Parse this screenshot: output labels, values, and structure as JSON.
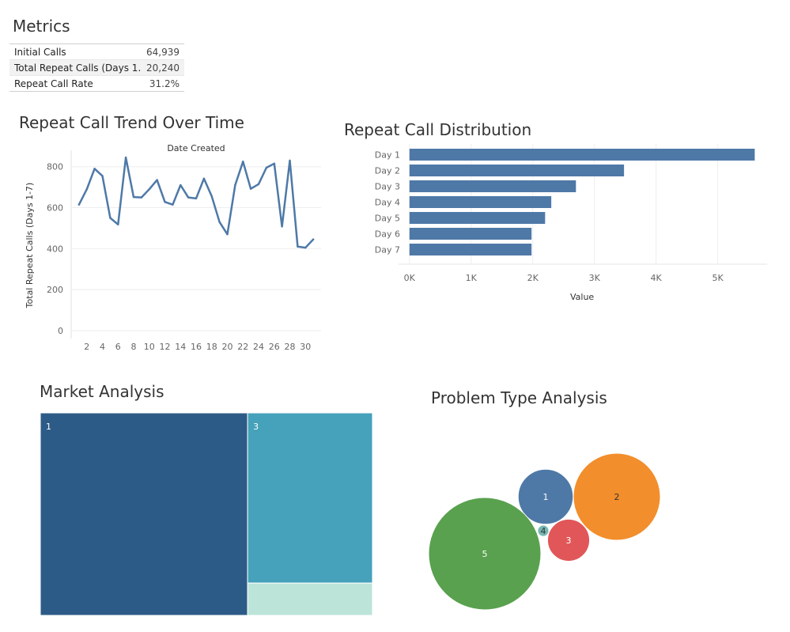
{
  "metrics": {
    "title": "Metrics",
    "rows": [
      {
        "label": "Initial Calls",
        "value": "64,939"
      },
      {
        "label": "Total Repeat Calls (Days 1..",
        "value": "20,240"
      },
      {
        "label": "Repeat Call Rate",
        "value": "31.2%"
      }
    ]
  },
  "chart_data": [
    {
      "type": "line",
      "title": "Repeat Call Trend Over Time",
      "xlabel": "Date Created",
      "ylabel": "Total Repeat Calls (Days 1-7)",
      "x": [
        1,
        2,
        3,
        4,
        5,
        6,
        7,
        8,
        9,
        10,
        11,
        12,
        13,
        14,
        15,
        16,
        17,
        18,
        19,
        20,
        21,
        22,
        23,
        24,
        25,
        26,
        27,
        28,
        29,
        30,
        31
      ],
      "values": [
        615,
        690,
        790,
        755,
        550,
        518,
        845,
        652,
        650,
        690,
        735,
        628,
        615,
        710,
        650,
        645,
        742,
        655,
        530,
        470,
        710,
        825,
        692,
        715,
        795,
        815,
        508,
        830,
        410,
        405,
        445
      ],
      "xticks": [
        2,
        4,
        6,
        8,
        10,
        12,
        14,
        16,
        18,
        20,
        22,
        24,
        26,
        28,
        30
      ],
      "yticks": [
        0,
        200,
        400,
        600,
        800
      ],
      "ylim": [
        0,
        880
      ],
      "xlim": [
        0,
        32
      ],
      "color": "#4e79a7"
    },
    {
      "type": "bar",
      "orientation": "horizontal",
      "title": "Repeat Call Distribution",
      "categories": [
        "Day 1",
        "Day 2",
        "Day 3",
        "Day 4",
        "Day 5",
        "Day 6",
        "Day 7"
      ],
      "values": [
        5600,
        3480,
        2700,
        2300,
        2200,
        1980,
        1980
      ],
      "xlabel": "Value",
      "xticks": [
        0,
        1000,
        2000,
        3000,
        4000,
        5000
      ],
      "xtick_labels": [
        "0K",
        "1K",
        "2K",
        "3K",
        "4K",
        "5K"
      ],
      "xlim": [
        -100,
        5800
      ],
      "color": "#4e79a7"
    },
    {
      "type": "treemap",
      "title": "Market Analysis",
      "items": [
        {
          "label": "1",
          "value": 62.4,
          "color": "#2d5b87"
        },
        {
          "label": "3",
          "value": 31.6,
          "color": "#46a1ba"
        },
        {
          "label": "",
          "value": 6.0,
          "color": "#bde4d9"
        }
      ]
    },
    {
      "type": "bubble",
      "title": "Problem Type Analysis",
      "items": [
        {
          "label": "1",
          "value": 24,
          "color": "#4e79a7"
        },
        {
          "label": "2",
          "value": 60,
          "color": "#f28e2b"
        },
        {
          "label": "3",
          "value": 14,
          "color": "#e15759"
        },
        {
          "label": "4",
          "value": 1,
          "color": "#76b7b2"
        },
        {
          "label": "5",
          "value": 100,
          "color": "#59a14f"
        }
      ]
    }
  ]
}
